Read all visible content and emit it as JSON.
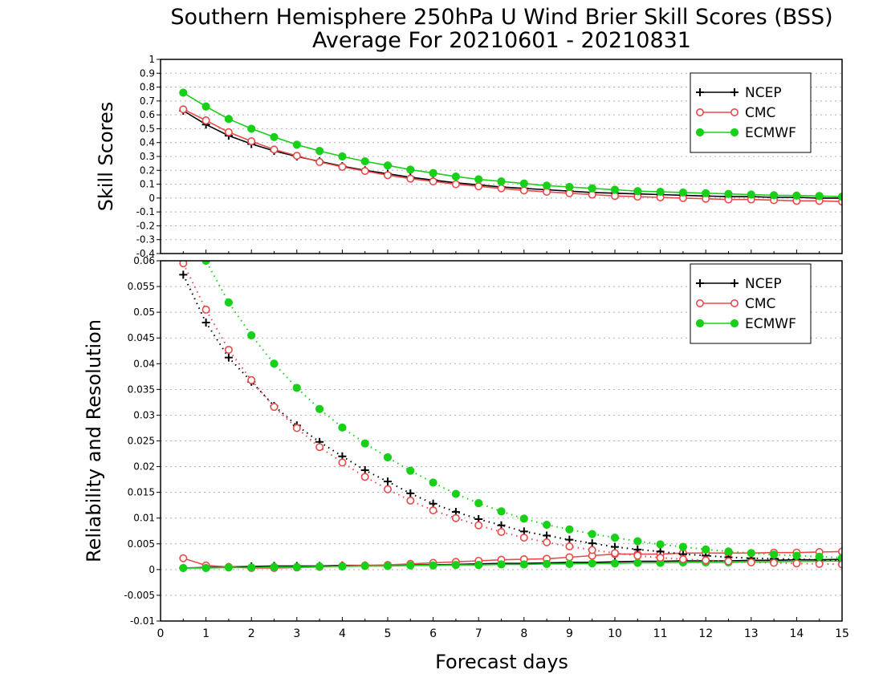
{
  "title_line1": "Southern Hemisphere 250hPa U Wind Brier Skill Scores (BSS)",
  "title_line2": "Average For 20210601 - 20210831",
  "xlabel": "Forecast days",
  "colors": {
    "NCEP": "#000000",
    "CMC": "#e84a4a",
    "ECMWF": "#18d018"
  },
  "chart_data": [
    {
      "type": "line",
      "ylabel": "Skill Scores",
      "xlim": [
        0,
        15
      ],
      "ylim": [
        -0.4,
        1
      ],
      "yticks": [
        -0.4,
        -0.3,
        -0.2,
        -0.1,
        0,
        0.1,
        0.2,
        0.3,
        0.4,
        0.5,
        0.6,
        0.7,
        0.8,
        0.9,
        1
      ],
      "ytick_labels": [
        "-0.4",
        "-0.3",
        "-0.2",
        "-0.1",
        "0",
        "0.1",
        "0.2",
        "0.3",
        "0.4",
        "0.5",
        "0.6",
        "0.7",
        "0.8",
        "0.9",
        "1"
      ],
      "grid": true,
      "legend": {
        "placement": "top-right",
        "entries": [
          "NCEP",
          "CMC",
          "ECMWF"
        ]
      },
      "x": [
        0.5,
        1,
        1.5,
        2,
        2.5,
        3,
        3.5,
        4,
        4.5,
        5,
        5.5,
        6,
        6.5,
        7,
        7.5,
        8,
        8.5,
        9,
        9.5,
        10,
        10.5,
        11,
        11.5,
        12,
        12.5,
        13,
        13.5,
        14,
        14.5,
        15
      ],
      "series": [
        {
          "name": "NCEP",
          "style": "solid",
          "marker": "plus",
          "values": [
            0.63,
            0.53,
            0.45,
            0.39,
            0.34,
            0.3,
            0.265,
            0.23,
            0.2,
            0.175,
            0.15,
            0.13,
            0.11,
            0.095,
            0.08,
            0.07,
            0.06,
            0.05,
            0.04,
            0.035,
            0.03,
            0.025,
            0.02,
            0.015,
            0.01,
            0.01,
            0.005,
            0.005,
            0.0,
            0.0
          ]
        },
        {
          "name": "CMC",
          "style": "solid",
          "marker": "open-circle",
          "values": [
            0.64,
            0.56,
            0.475,
            0.41,
            0.35,
            0.305,
            0.26,
            0.225,
            0.195,
            0.165,
            0.14,
            0.12,
            0.1,
            0.085,
            0.07,
            0.055,
            0.045,
            0.035,
            0.025,
            0.015,
            0.01,
            0.005,
            0.0,
            -0.005,
            -0.01,
            -0.01,
            -0.015,
            -0.02,
            -0.02,
            -0.025
          ]
        },
        {
          "name": "ECMWF",
          "style": "solid",
          "marker": "filled-circle",
          "values": [
            0.76,
            0.66,
            0.57,
            0.5,
            0.44,
            0.385,
            0.34,
            0.3,
            0.265,
            0.235,
            0.205,
            0.18,
            0.155,
            0.135,
            0.12,
            0.105,
            0.09,
            0.08,
            0.07,
            0.06,
            0.05,
            0.045,
            0.04,
            0.035,
            0.03,
            0.025,
            0.02,
            0.018,
            0.015,
            0.01
          ]
        }
      ]
    },
    {
      "type": "line",
      "ylabel": "Reliability and Resolution",
      "xlim": [
        0,
        15
      ],
      "ylim": [
        -0.01,
        0.06
      ],
      "yticks": [
        -0.01,
        -0.005,
        0,
        0.005,
        0.01,
        0.015,
        0.02,
        0.025,
        0.03,
        0.035,
        0.04,
        0.045,
        0.05,
        0.055,
        0.06
      ],
      "ytick_labels": [
        "-0.01",
        "-0.005",
        "0",
        "0.005",
        "0.01",
        "0.015",
        "0.02",
        "0.025",
        "0.03",
        "0.035",
        "0.04",
        "0.045",
        "0.05",
        "0.055",
        "0.06"
      ],
      "xticks": [
        0,
        1,
        2,
        3,
        4,
        5,
        6,
        7,
        8,
        9,
        10,
        11,
        12,
        13,
        14,
        15
      ],
      "xtick_labels": [
        "0",
        "1",
        "2",
        "3",
        "4",
        "5",
        "6",
        "7",
        "8",
        "9",
        "10",
        "11",
        "12",
        "13",
        "14",
        "15"
      ],
      "grid": true,
      "legend": {
        "placement": "top-right",
        "entries": [
          "NCEP",
          "CMC",
          "ECMWF"
        ]
      },
      "x": [
        0.5,
        1,
        1.5,
        2,
        2.5,
        3,
        3.5,
        4,
        4.5,
        5,
        5.5,
        6,
        6.5,
        7,
        7.5,
        8,
        8.5,
        9,
        9.5,
        10,
        10.5,
        11,
        11.5,
        12,
        12.5,
        13,
        13.5,
        14,
        14.5,
        15
      ],
      "series": [
        {
          "name": "NCEP",
          "group": "reliability",
          "style": "solid",
          "marker": "plus",
          "values": [
            0.0003,
            0.0004,
            0.0005,
            0.0006,
            0.0007,
            0.0007,
            0.0007,
            0.0008,
            0.0008,
            0.0008,
            0.0009,
            0.0009,
            0.001,
            0.0011,
            0.0012,
            0.0012,
            0.0013,
            0.0014,
            0.0014,
            0.0015,
            0.0016,
            0.0016,
            0.0017,
            0.0017,
            0.0017,
            0.0018,
            0.0018,
            0.0019,
            0.0019,
            0.002
          ]
        },
        {
          "name": "CMC",
          "group": "reliability",
          "style": "solid",
          "marker": "open-circle",
          "values": [
            0.0022,
            0.0008,
            0.0005,
            0.0003,
            0.0003,
            0.0004,
            0.0005,
            0.0007,
            0.0008,
            0.0009,
            0.0011,
            0.0013,
            0.0015,
            0.0017,
            0.0019,
            0.002,
            0.0021,
            0.0024,
            0.0027,
            0.003,
            0.003,
            0.003,
            0.0032,
            0.0032,
            0.0032,
            0.0032,
            0.0033,
            0.0033,
            0.0034,
            0.0035
          ]
        },
        {
          "name": "ECMWF",
          "group": "reliability",
          "style": "solid",
          "marker": "filled-circle",
          "values": [
            0.0003,
            0.0003,
            0.0004,
            0.0004,
            0.0005,
            0.0005,
            0.0006,
            0.0006,
            0.0007,
            0.0007,
            0.0008,
            0.0008,
            0.0009,
            0.0009,
            0.001,
            0.001,
            0.0011,
            0.0011,
            0.0012,
            0.0012,
            0.0013,
            0.0013,
            0.0014,
            0.0014,
            0.0014,
            0.0015,
            0.0015,
            0.0016,
            0.0016,
            0.0017
          ]
        },
        {
          "name": "NCEP",
          "group": "resolution",
          "style": "dotted",
          "marker": "plus",
          "values": [
            0.0573,
            0.048,
            0.0412,
            0.0365,
            0.0318,
            0.028,
            0.0248,
            0.022,
            0.0193,
            0.0171,
            0.0148,
            0.0128,
            0.0112,
            0.0098,
            0.0086,
            0.0074,
            0.0066,
            0.0058,
            0.0051,
            0.0044,
            0.0039,
            0.0035,
            0.003,
            0.0027,
            0.0024,
            0.0022,
            0.0021,
            0.002,
            0.0019,
            0.0018
          ]
        },
        {
          "name": "CMC",
          "group": "resolution",
          "style": "dotted",
          "marker": "open-circle",
          "values": [
            0.0595,
            0.0505,
            0.0427,
            0.0368,
            0.0316,
            0.0275,
            0.0238,
            0.0208,
            0.018,
            0.0156,
            0.0134,
            0.0115,
            0.01,
            0.0086,
            0.0073,
            0.0062,
            0.0053,
            0.0045,
            0.0038,
            0.0032,
            0.0027,
            0.0023,
            0.002,
            0.0018,
            0.0016,
            0.0014,
            0.0013,
            0.0012,
            0.0011,
            0.001
          ]
        },
        {
          "name": "ECMWF",
          "group": "resolution",
          "style": "dotted",
          "marker": "filled-circle",
          "values": [
            0.0665,
            0.06,
            0.0519,
            0.0455,
            0.04,
            0.0353,
            0.0312,
            0.0276,
            0.0245,
            0.0218,
            0.0192,
            0.0169,
            0.0147,
            0.0129,
            0.0113,
            0.0099,
            0.0087,
            0.0078,
            0.0069,
            0.0062,
            0.0055,
            0.0049,
            0.0044,
            0.0039,
            0.0035,
            0.0032,
            0.0029,
            0.0027,
            0.0025,
            0.0023
          ]
        }
      ]
    }
  ]
}
